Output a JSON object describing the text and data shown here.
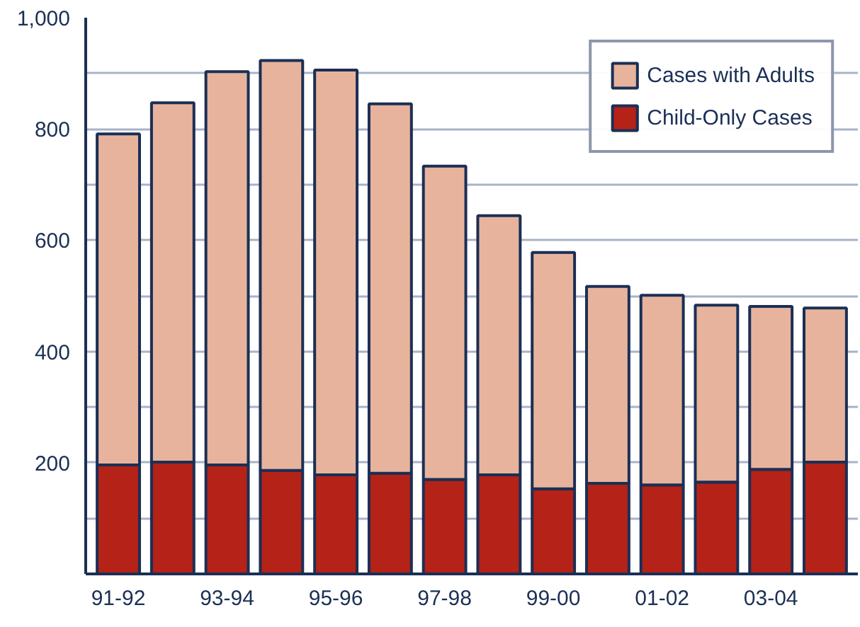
{
  "chart_data": {
    "type": "bar",
    "stacked": true,
    "categories": [
      "91-92",
      null,
      "93-94",
      null,
      "95-96",
      null,
      "97-98",
      null,
      "99-00",
      null,
      "01-02",
      null,
      "03-04",
      null
    ],
    "series": [
      {
        "name": "Child-Only Cases",
        "color": "#b52217",
        "values": [
          196,
          201,
          196,
          186,
          178,
          181,
          170,
          178,
          153,
          163,
          160,
          165,
          188,
          201
        ]
      },
      {
        "name": "Cases with Adults",
        "color": "#e8b39c",
        "values": [
          595,
          646,
          707,
          737,
          728,
          664,
          563,
          466,
          425,
          354,
          341,
          318,
          293,
          277
        ]
      }
    ],
    "ylim": [
      0,
      1000
    ],
    "yticks": [
      {
        "value": 0,
        "label": null
      },
      {
        "value": 100,
        "label": null
      },
      200,
      {
        "value": 300,
        "label": null
      },
      400,
      {
        "value": 500,
        "label": null
      },
      600,
      {
        "value": 700,
        "label": null
      },
      800,
      {
        "value": 900,
        "label": null
      },
      {
        "value": 1000,
        "label": "1,000"
      }
    ],
    "grid": "y",
    "legend": "top right"
  }
}
